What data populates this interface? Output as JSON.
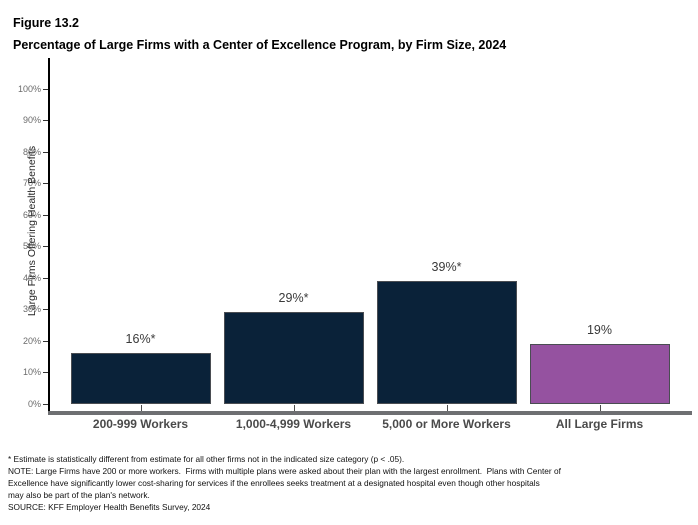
{
  "header": {
    "figure_label": "Figure 13.2",
    "title": "Percentage of Large Firms with a Center of Excellence Program, by Firm Size, 2024"
  },
  "chart_data": {
    "type": "bar",
    "title": "Percentage of Large Firms with a Center of Excellence Program, by Firm Size, 2024",
    "categories": [
      "200-999 Workers",
      "1,000-4,999 Workers",
      "5,000 or More Workers",
      "All Large Firms"
    ],
    "values": [
      16,
      29,
      39,
      19
    ],
    "value_labels": [
      "16%*",
      "29%%*",
      "39%*",
      "19%"
    ],
    "bar_colors": [
      "#0a2239",
      "#0a2239",
      "#0a2239",
      "#9552a0"
    ],
    "xlabel": "",
    "ylabel": "Large Firms Offering Health Benefits",
    "ylim": [
      0,
      100
    ],
    "ytick_step": 10,
    "ytick_labels": [
      "0%",
      "10%",
      "20%",
      "30%",
      "40%",
      "50%",
      "60%",
      "70%",
      "80%",
      "90%",
      "100%"
    ],
    "grid": false,
    "legend": "none"
  },
  "colors": {
    "navy_bar": "#0a2239",
    "purple_bar": "#9552a0",
    "x_axis_line": "#6e6f72",
    "tick_label": "#6b6b6b",
    "category_label": "#4a4a4a",
    "value_label": "#3a3a3a"
  },
  "footnotes": {
    "lines": [
      "* Estimate is statistically different from estimate for all other firms not in the indicated size category (p < .05).",
      "NOTE: Large Firms have 200 or more workers.  Firms with multiple plans were asked about their plan with the largest enrollment.  Plans with Center of",
      "Excellence have significantly lower cost-sharing for services if the enrollees seeks treatment at a designated hospital even though other hospitals",
      "may also be part of the plan's network.",
      "SOURCE: KFF Employer Health Benefits Survey, 2024"
    ]
  }
}
